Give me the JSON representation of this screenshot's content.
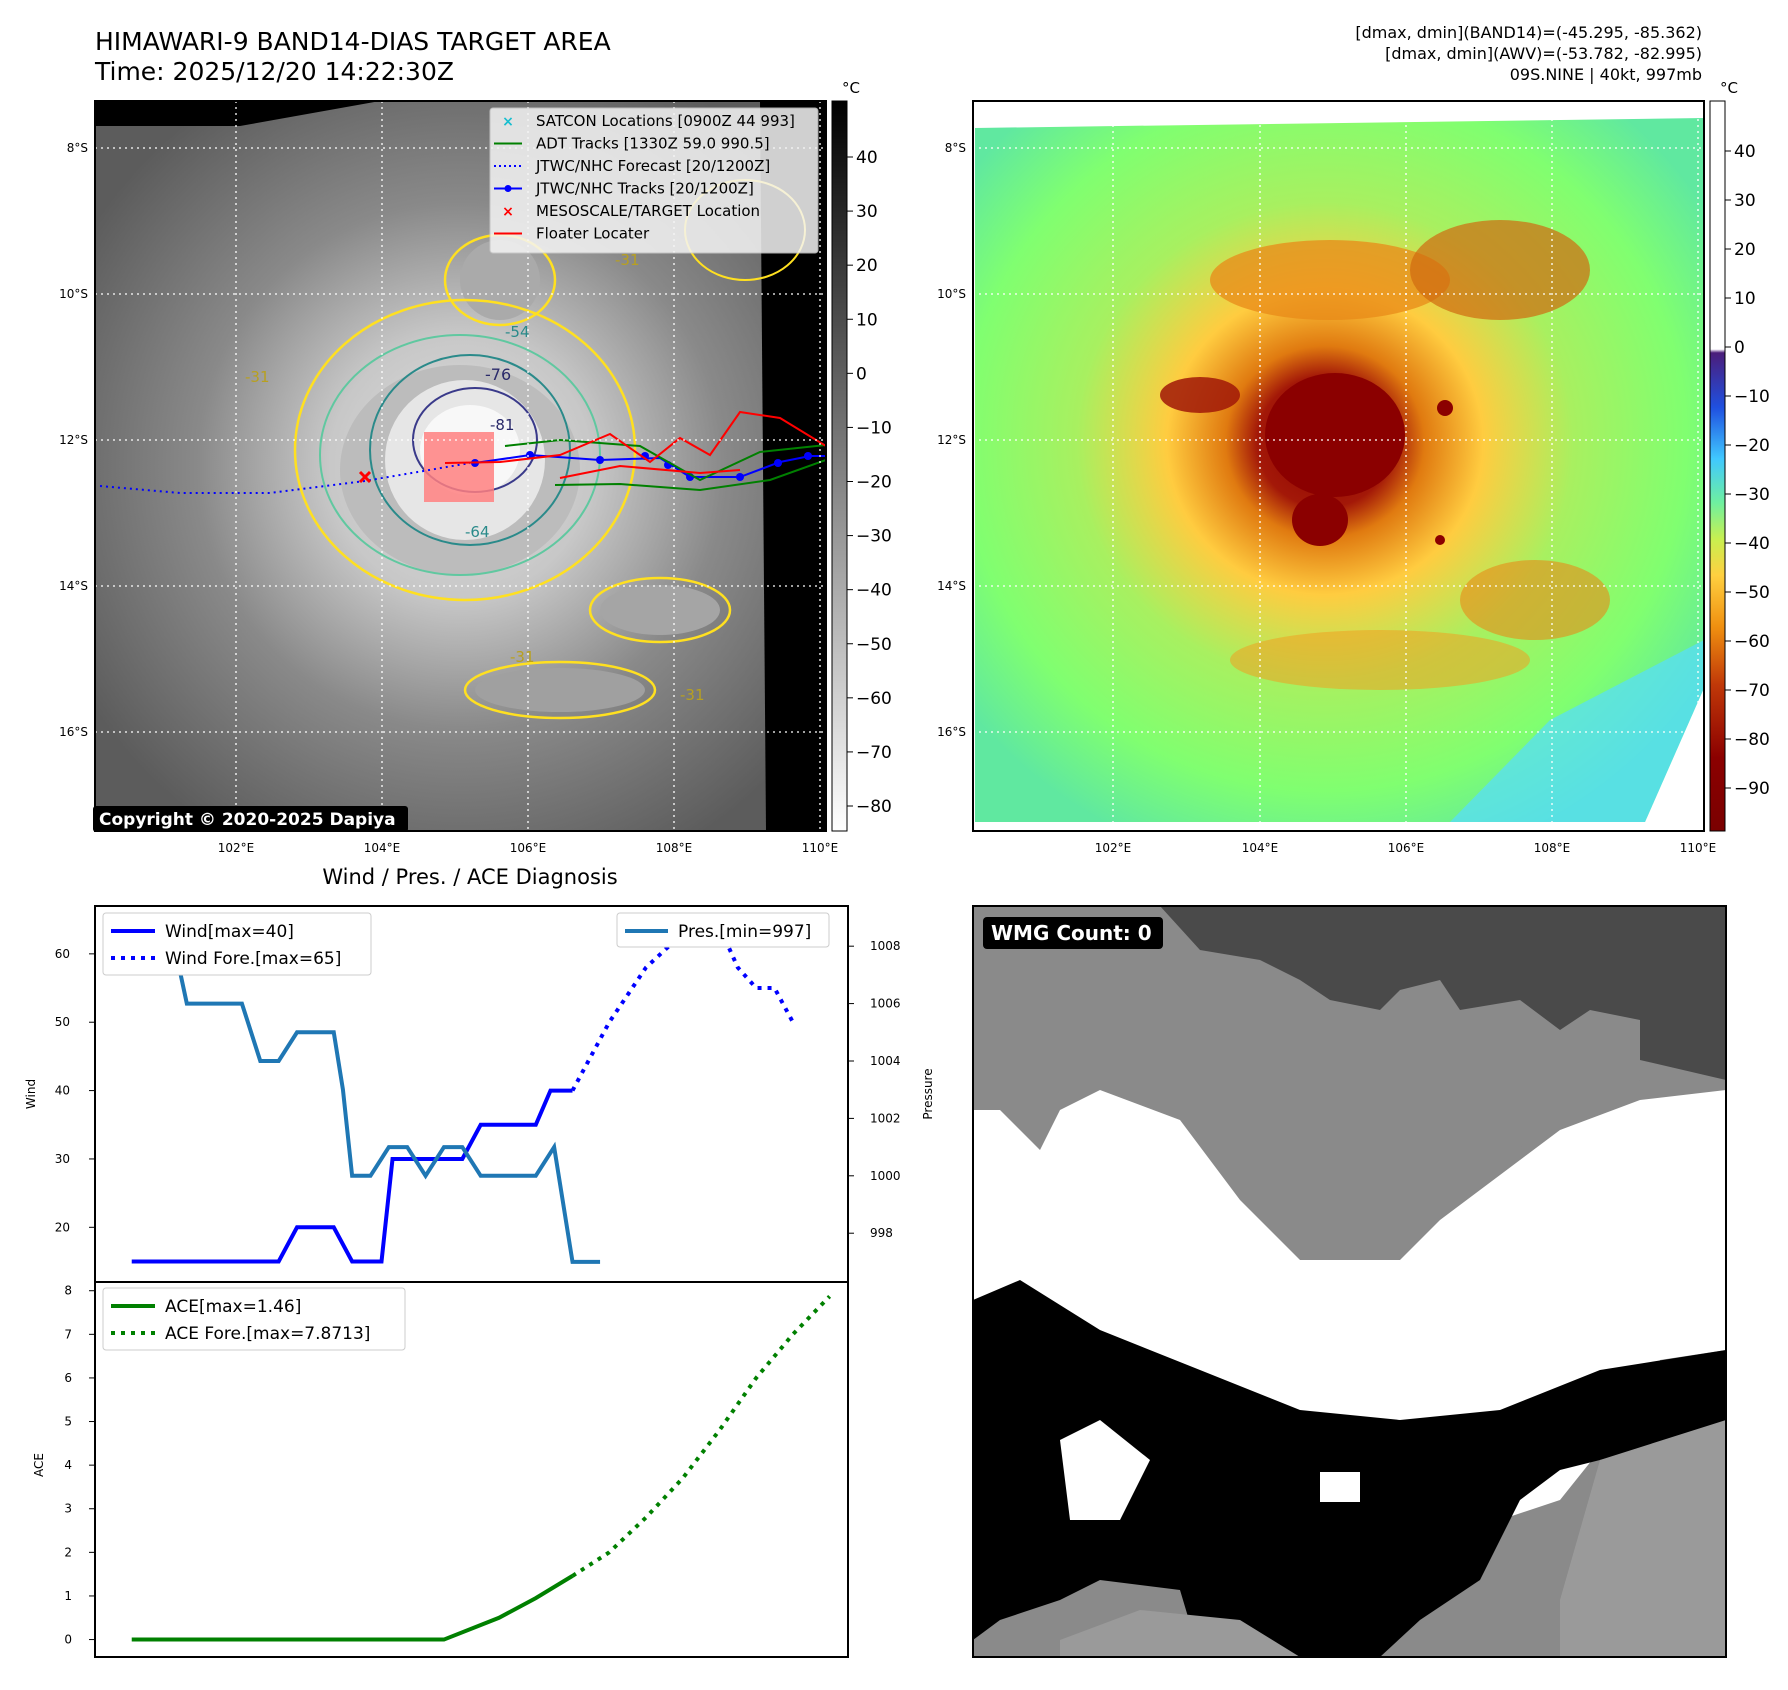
{
  "header": {
    "title_line1": "HIMAWARI-9 BAND14-DIAS TARGET AREA",
    "title_line2": "Time: 2025/12/20 14:22:30Z",
    "info_line1": "[dmax, dmin](BAND14)=(-45.295, -85.362)",
    "info_line2": "[dmax, dmin](AWV)=(-53.782, -82.995)",
    "info_line3": "09S.NINE | 40kt, 997mb"
  },
  "maps": {
    "lat_labels": [
      "8°S",
      "10°S",
      "12°S",
      "14°S",
      "16°S"
    ],
    "lon_labels": [
      "102°E",
      "104°E",
      "106°E",
      "108°E",
      "110°E"
    ],
    "copyright": "Copyright © 2020-2025 Dapiya",
    "contour_labels": [
      "-31",
      "-54",
      "-76",
      "-81",
      "-64"
    ]
  },
  "colorbar_left": {
    "unit": "°C",
    "ticks": [
      "40",
      "30",
      "20",
      "10",
      "0",
      "−10",
      "−20",
      "−30",
      "−40",
      "−50",
      "−60",
      "−70",
      "−80"
    ]
  },
  "colorbar_right": {
    "unit": "°C",
    "ticks": [
      "40",
      "30",
      "20",
      "10",
      "0",
      "−10",
      "−20",
      "−30",
      "−40",
      "−50",
      "−60",
      "−70",
      "−80",
      "−90"
    ]
  },
  "legend": [
    {
      "label": "SATCON Locations [0900Z 44 993]",
      "color": "#17becf",
      "style": "x"
    },
    {
      "label": "ADT Tracks [1330Z 59.0 990.5]",
      "color": "#008000",
      "style": "line"
    },
    {
      "label": "JTWC/NHC Forecast [20/1200Z]",
      "color": "#0000ff",
      "style": "dotted"
    },
    {
      "label": "JTWC/NHC Tracks [20/1200Z]",
      "color": "#0000ff",
      "style": "line-dot"
    },
    {
      "label": "MESOSCALE/TARGET Location",
      "color": "#ff0000",
      "style": "x"
    },
    {
      "label": "Floater Locater",
      "color": "#ff0000",
      "style": "line"
    }
  ],
  "diagnosis": {
    "title": "Wind / Pres. / ACE Diagnosis",
    "wind_ylabel": "Wind",
    "pres_ylabel": "Pressure",
    "ace_ylabel": "ACE",
    "wind_ticks": [
      "60",
      "50",
      "40",
      "30",
      "20"
    ],
    "pres_ticks": [
      "1008",
      "1006",
      "1004",
      "1002",
      "1000",
      "998"
    ],
    "ace_ticks": [
      "8",
      "7",
      "6",
      "5",
      "4",
      "3",
      "2",
      "1",
      "0"
    ],
    "legend_wind": "Wind[max=40]",
    "legend_wind_fore": "Wind Fore.[max=65]",
    "legend_pres": "Pres.[min=997]",
    "legend_ace": "ACE[max=1.46]",
    "legend_ace_fore": "ACE Fore.[max=7.8713]"
  },
  "wmg": {
    "label": "WMG Count: 0"
  },
  "chart_data": [
    {
      "type": "line",
      "title": "Wind / Pres. / ACE Diagnosis",
      "ylabel": "Wind",
      "ylim": [
        12,
        67
      ],
      "x": [
        0,
        6,
        12,
        18,
        24,
        30,
        36,
        42,
        48,
        54,
        60,
        66,
        72,
        78,
        84,
        90,
        96,
        102,
        108,
        114,
        120,
        126,
        132,
        138,
        144,
        150,
        156,
        162,
        168,
        174,
        180,
        186,
        192,
        198,
        204,
        210,
        216,
        222,
        228,
        234,
        240,
        246,
        252,
        258,
        264,
        270,
        276,
        282,
        288,
        294,
        300,
        306,
        312,
        318,
        324,
        330,
        336,
        342,
        348,
        354,
        360,
        366,
        372,
        378,
        384,
        390,
        396
      ],
      "series": [
        {
          "name": "Wind[max=40]",
          "x": [
            0,
            12,
            18,
            24,
            30,
            36,
            42,
            48,
            54,
            60,
            66,
            72,
            78,
            84,
            90,
            96,
            102,
            108,
            114,
            120,
            126,
            132,
            138,
            144,
            150,
            156,
            162,
            168,
            174,
            180,
            186,
            192,
            198,
            204,
            210,
            216,
            222,
            228,
            234,
            240,
            246,
            252,
            258,
            264,
            270,
            276,
            282,
            288,
            294,
            300,
            306,
            312,
            318,
            324,
            330,
            336,
            342,
            348,
            354,
            360,
            366,
            372,
            378,
            384,
            390,
            396
          ],
          "points": [
            [
              0,
              15
            ],
            [
              80,
              15
            ],
            [
              90,
              20
            ],
            [
              110,
              20
            ],
            [
              120,
              15
            ],
            [
              136,
              15
            ],
            [
              142,
              30
            ],
            [
              180,
              30
            ],
            [
              190,
              35
            ],
            [
              220,
              35
            ],
            [
              228,
              40
            ],
            [
              240,
              40
            ]
          ]
        },
        {
          "name": "Wind Fore.[max=65]",
          "points": [
            [
              240,
              40
            ],
            [
              260,
              50
            ],
            [
              280,
              58
            ],
            [
              300,
              63
            ],
            [
              310,
              65
            ],
            [
              320,
              64
            ],
            [
              330,
              58
            ],
            [
              340,
              55
            ],
            [
              350,
              55
            ],
            [
              360,
              50
            ]
          ]
        },
        {
          "name": "Pres.[min=997]",
          "axis": "right",
          "ylim": [
            996.3,
            1009.4
          ],
          "points": [
            [
              0,
              1009
            ],
            [
              20,
              1009
            ],
            [
              30,
              1006
            ],
            [
              60,
              1006
            ],
            [
              70,
              1004
            ],
            [
              80,
              1004
            ],
            [
              90,
              1005
            ],
            [
              110,
              1005
            ],
            [
              115,
              1003
            ],
            [
              120,
              1000
            ],
            [
              130,
              1000
            ],
            [
              140,
              1001
            ],
            [
              150,
              1001
            ],
            [
              160,
              1000
            ],
            [
              170,
              1001
            ],
            [
              180,
              1001
            ],
            [
              190,
              1000
            ],
            [
              210,
              1000
            ],
            [
              220,
              1000
            ],
            [
              230,
              1001
            ],
            [
              240,
              997
            ],
            [
              255,
              997
            ]
          ]
        }
      ]
    },
    {
      "type": "line",
      "ylabel": "ACE",
      "ylim": [
        -0.4,
        8.2
      ],
      "series": [
        {
          "name": "ACE[max=1.46]",
          "points": [
            [
              0,
              0
            ],
            [
              140,
              0
            ],
            [
              170,
              0
            ],
            [
              200,
              0.5
            ],
            [
              220,
              0.95
            ],
            [
              240,
              1.46
            ]
          ]
        },
        {
          "name": "ACE Fore.[max=7.8713]",
          "points": [
            [
              240,
              1.46
            ],
            [
              260,
              2
            ],
            [
              280,
              2.8
            ],
            [
              300,
              3.7
            ],
            [
              320,
              4.8
            ],
            [
              340,
              6
            ],
            [
              360,
              7.0
            ],
            [
              380,
              7.8713
            ]
          ]
        }
      ]
    }
  ],
  "colors": {
    "wind": "#0000ff",
    "pressure": "#1f77b4",
    "ace": "#008000",
    "floater": "#ff0000"
  }
}
